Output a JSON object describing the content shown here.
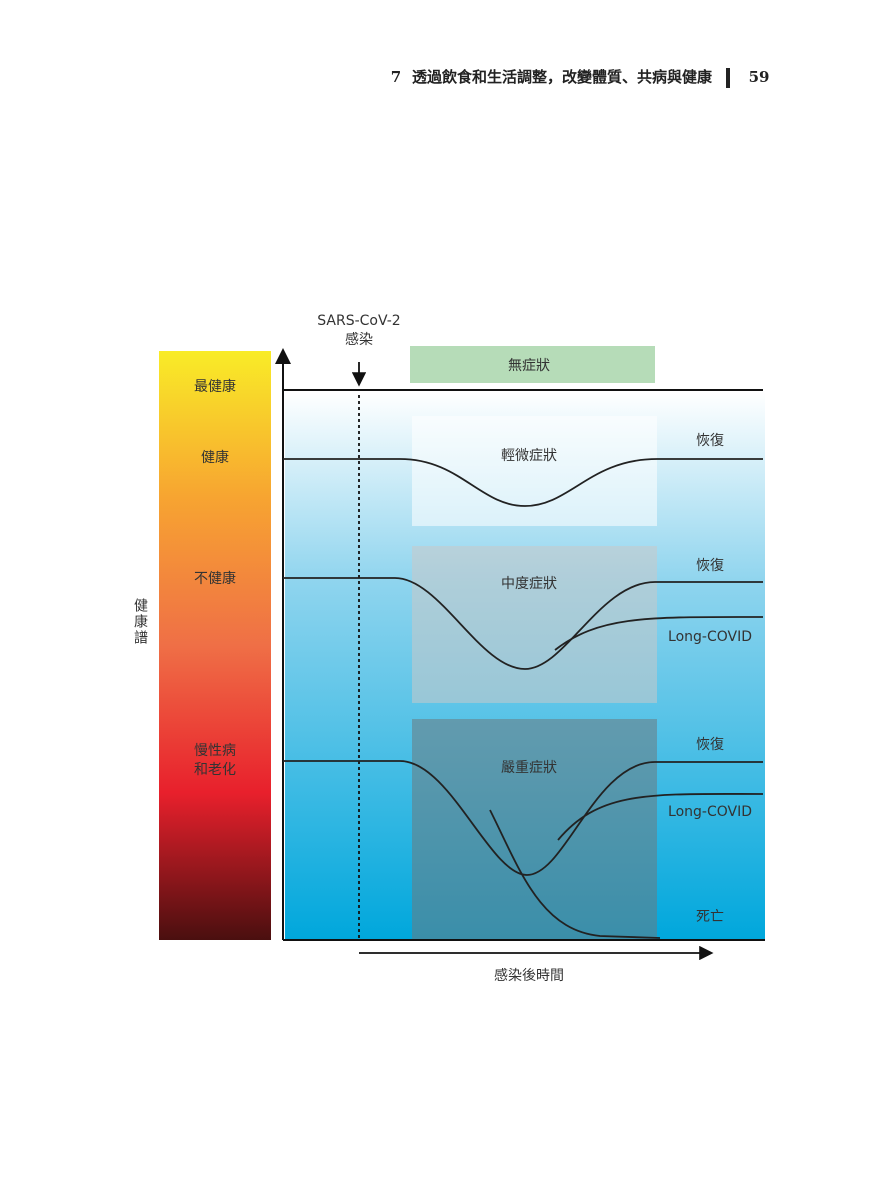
{
  "header": {
    "chapter": "7",
    "title": "透過飲食和生活調整，改變體質、共病與健康",
    "page": "59"
  },
  "diagram": {
    "infection": [
      "SARS-CoV-2",
      "感染"
    ],
    "asymptomatic": "無症狀",
    "y_axis_label": "健康譜",
    "levels": [
      "最健康",
      "健康",
      "不健康",
      "慢性病",
      "和老化"
    ],
    "boxes": [
      "輕微症狀",
      "中度症狀",
      "嚴重症狀"
    ],
    "mild_outcomes": [
      "恢復"
    ],
    "moderate_outcomes": [
      "恢復",
      "Long-COVID"
    ],
    "severe_outcomes": [
      "恢復",
      "Long-COVID",
      "死亡"
    ],
    "x_axis_label": "感染後時間"
  }
}
